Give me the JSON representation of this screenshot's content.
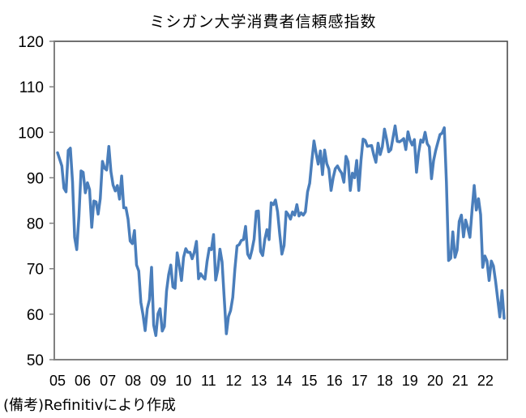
{
  "title": "ミシガン大学消費者信頼感指数",
  "note": "(備考)Refinitivにより作成",
  "colors": {
    "line": "#4a7ebb",
    "axis": "#808080",
    "frame": "#404040"
  },
  "chart_data": {
    "type": "line",
    "title": "ミシガン大学消費者信頼感指数",
    "xlabel": "",
    "ylabel": "",
    "ylim": [
      50,
      120
    ],
    "yticks": [
      50,
      60,
      70,
      80,
      90,
      100,
      110,
      120
    ],
    "xticks": [
      "05",
      "06",
      "07",
      "08",
      "09",
      "10",
      "11",
      "12",
      "13",
      "14",
      "15",
      "16",
      "17",
      "18",
      "19",
      "20",
      "21",
      "22"
    ],
    "grid": false,
    "legend": "none",
    "series": [
      {
        "name": "ミシガン大学消費者信頼感指数",
        "x_start": 2005.0,
        "step": 0.0833,
        "values": [
          95.5,
          94.1,
          92.6,
          87.7,
          86.9,
          96.0,
          96.5,
          89.1,
          76.9,
          74.2,
          81.6,
          91.5,
          91.2,
          86.7,
          88.9,
          87.4,
          79.1,
          84.9,
          84.7,
          82.0,
          85.4,
          93.6,
          92.1,
          91.7,
          96.9,
          91.3,
          88.4,
          87.1,
          88.3,
          85.3,
          90.4,
          83.4,
          83.4,
          80.9,
          76.1,
          75.5,
          78.4,
          70.8,
          69.5,
          62.6,
          59.8,
          56.4,
          61.2,
          63.2,
          70.3,
          57.6,
          55.3,
          60.1,
          61.2,
          56.3,
          57.3,
          65.1,
          68.7,
          70.8,
          66.0,
          65.7,
          73.5,
          70.6,
          67.4,
          72.5,
          74.4,
          73.6,
          73.6,
          72.2,
          73.6,
          76.0,
          67.8,
          68.9,
          68.2,
          67.7,
          71.6,
          74.5,
          74.2,
          77.5,
          67.5,
          69.8,
          74.3,
          71.5,
          63.7,
          55.7,
          59.5,
          60.8,
          63.7,
          69.9,
          75.0,
          75.3,
          76.2,
          76.4,
          79.3,
          73.2,
          72.3,
          74.1,
          76.5,
          82.6,
          82.7,
          73.8,
          72.9,
          76.4,
          78.6,
          76.4,
          84.5,
          84.1,
          85.1,
          82.5,
          77.5,
          73.2,
          75.1,
          82.5,
          81.9,
          80.9,
          82.5,
          81.8,
          84.1,
          81.6,
          82.3,
          81.8,
          82.5,
          86.9,
          88.8,
          93.6,
          98.1,
          95.4,
          93.0,
          95.9,
          90.7,
          96.1,
          93.1,
          91.9,
          87.2,
          90.0,
          92.0,
          92.6,
          91.7,
          91.0,
          89.0,
          94.7,
          93.5,
          87.2,
          91.0,
          90.0,
          93.8,
          87.2,
          93.8,
          98.5,
          98.2,
          96.9,
          97.0,
          97.1,
          95.0,
          93.4,
          97.6,
          95.1,
          96.8,
          100.7,
          98.5,
          95.7,
          96.2,
          98.8,
          101.4,
          98.0,
          97.9,
          98.2,
          98.6,
          96.2,
          100.1,
          98.2,
          97.2,
          98.4,
          91.2,
          95.5,
          98.3,
          97.8,
          100.0,
          97.5,
          96.8,
          89.8,
          93.8,
          96.0,
          97.8,
          99.5,
          99.8,
          101.0,
          89.1,
          71.8,
          72.3,
          78.1,
          72.5,
          74.1,
          80.4,
          81.8,
          77.0,
          80.7,
          79.0,
          76.9,
          83.0,
          88.3,
          82.9,
          85.4,
          81.9,
          70.3,
          72.8,
          71.7,
          67.4,
          71.7,
          70.6,
          67.2,
          63.3,
          59.4,
          65.2,
          59.1
        ]
      }
    ]
  }
}
